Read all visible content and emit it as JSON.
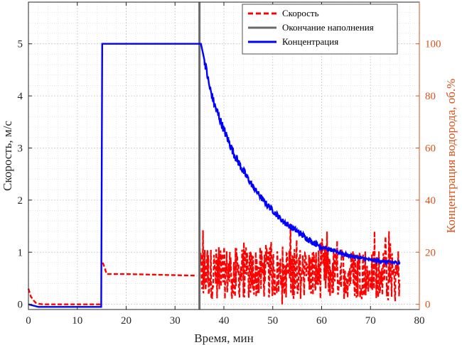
{
  "chart_data": {
    "type": "line",
    "xlabel": "Время, мин",
    "ylabel_left": "Скорость, м/с",
    "ylabel_right": "Концентрация водорода, об.%",
    "xlim": [
      0,
      80
    ],
    "ylim_left": [
      -0.1,
      5.8
    ],
    "ylim_right": [
      -2,
      116
    ],
    "x_ticks": [
      "0",
      "10",
      "20",
      "30",
      "40",
      "50",
      "60",
      "70",
      "80"
    ],
    "y_ticks_left": [
      "0",
      "1",
      "2",
      "3",
      "4",
      "5"
    ],
    "y_ticks_right": [
      "0",
      "20",
      "40",
      "60",
      "80",
      "100"
    ],
    "grid": true,
    "minor_grid": true,
    "legend_position": "top-right",
    "colors": {
      "speed": "#ff0000",
      "fill_end": "#696969",
      "concentration": "#0000ff",
      "right_axis": "#d95319"
    },
    "legend": [
      "Скорость",
      "Окончание наполнения",
      "Концентрация"
    ],
    "fill_end_x": 35,
    "series": [
      {
        "name": "Скорость",
        "axis": "left",
        "style": "dashed",
        "segments": [
          {
            "x": [
              0,
              0.5,
              1,
              1.5,
              2,
              3,
              4,
              6,
              10,
              14,
              15
            ],
            "y": [
              0.3,
              0.15,
              0.08,
              0.03,
              0.01,
              0.0,
              0.0,
              0.0,
              0.0,
              0.0,
              0.0
            ]
          },
          {
            "x": [
              15.2,
              15.6,
              16,
              17,
              20,
              25,
              30,
              34.5
            ],
            "y": [
              0.8,
              0.7,
              0.58,
              0.58,
              0.58,
              0.57,
              0.56,
              0.55
            ]
          }
        ],
        "noisy_band": {
          "x_range": [
            35,
            76
          ],
          "center": 0.6,
          "min": 0.0,
          "max": 1.55
        }
      },
      {
        "name": "Концентрация",
        "axis": "right",
        "style": "solid",
        "x": [
          0,
          1,
          2,
          3,
          5,
          10,
          14.9,
          15.1,
          20,
          25,
          30,
          34,
          35,
          35.3,
          36,
          37,
          38,
          40,
          42,
          44,
          46,
          48,
          50,
          52,
          55,
          58,
          60,
          65,
          70,
          75,
          76
        ],
        "y": [
          0,
          -0.5,
          -1,
          -1,
          -1,
          -1,
          -1,
          100,
          100,
          100,
          100,
          100,
          100,
          100,
          94,
          84,
          77,
          67,
          58,
          51,
          45,
          40,
          36,
          32,
          28,
          24,
          22,
          19,
          17,
          16,
          16
        ]
      }
    ]
  }
}
